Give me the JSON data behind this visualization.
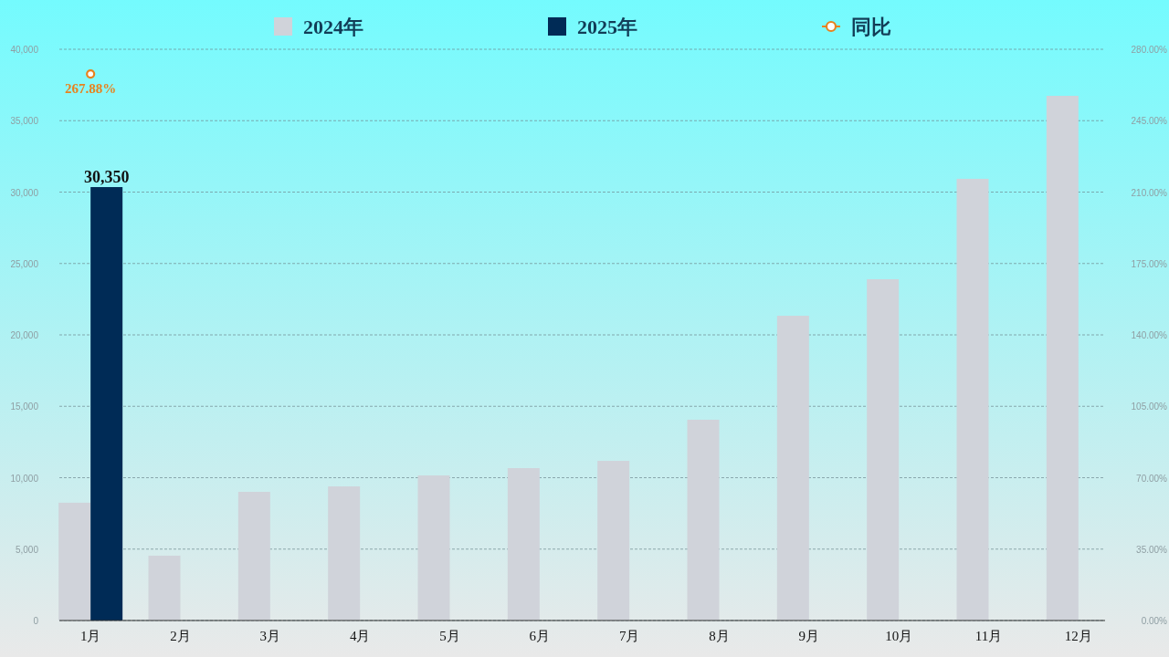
{
  "chart_data": {
    "type": "bar",
    "categories": [
      "1月",
      "2月",
      "3月",
      "4月",
      "5月",
      "6月",
      "7月",
      "8月",
      "9月",
      "10月",
      "11月",
      "12月"
    ],
    "series": [
      {
        "name": "2024年",
        "color": "#d0d3da",
        "values": [
          8250,
          4540,
          9010,
          9390,
          10160,
          10670,
          11180,
          14060,
          21340,
          23900,
          30930,
          36740
        ]
      },
      {
        "name": "2025年",
        "color": "#002b56",
        "values": [
          30350,
          null,
          null,
          null,
          null,
          null,
          null,
          null,
          null,
          null,
          null,
          null
        ],
        "value_labels": [
          "30,350",
          null,
          null,
          null,
          null,
          null,
          null,
          null,
          null,
          null,
          null,
          null
        ]
      },
      {
        "name": "同比",
        "type": "line",
        "axis": "y2",
        "color": "#e8821e",
        "marker": "circle",
        "values": [
          267.88,
          null,
          null,
          null,
          null,
          null,
          null,
          null,
          null,
          null,
          null,
          null
        ],
        "value_labels": [
          "267.88%",
          null,
          null,
          null,
          null,
          null,
          null,
          null,
          null,
          null,
          null,
          null
        ]
      }
    ],
    "ylim": [
      0,
      40000
    ],
    "yticks": [
      0,
      {
        "value": 5000,
        "label": "5,000"
      },
      {
        "value": 10000,
        "label": "10,000"
      },
      {
        "value": 15000,
        "label": "15,000"
      },
      {
        "value": 20000,
        "label": "20,000"
      },
      {
        "value": 25000,
        "label": "25,000"
      },
      {
        "value": 30000,
        "label": "30,000"
      },
      {
        "value": 35000,
        "label": "35,000"
      },
      {
        "value": 40000,
        "label": "40,000"
      }
    ],
    "y2lim": [
      0,
      280
    ],
    "y2ticks": [
      {
        "value": 0,
        "label": "0.00%"
      },
      {
        "value": 35,
        "label": "35.00%"
      },
      {
        "value": 70,
        "label": "70.00%"
      },
      {
        "value": 105,
        "label": "105.00%"
      },
      {
        "value": 140,
        "label": "140.00%"
      },
      {
        "value": 175,
        "label": "175.00%"
      },
      {
        "value": 210,
        "label": "210.00%"
      },
      {
        "value": 245,
        "label": "245.00%"
      },
      {
        "value": 280,
        "label": "280.00%"
      }
    ],
    "grid": "y",
    "legend": "top"
  }
}
